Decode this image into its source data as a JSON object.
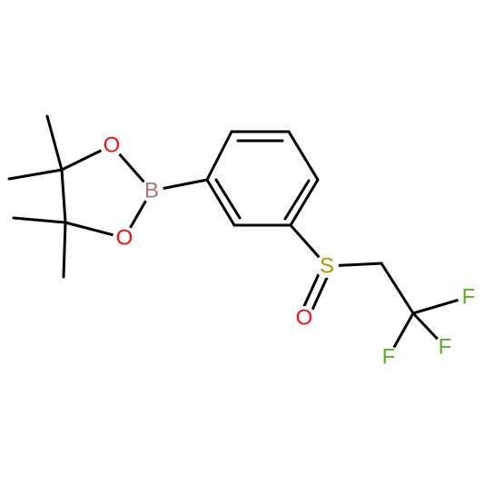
{
  "atoms": [
    {
      "label": "O"
    },
    {
      "label": "O"
    },
    {
      "label": "B"
    },
    {
      "label": "S"
    },
    {
      "label": "O"
    },
    {
      "label": "F"
    },
    {
      "label": "F"
    },
    {
      "label": "F"
    }
  ]
}
